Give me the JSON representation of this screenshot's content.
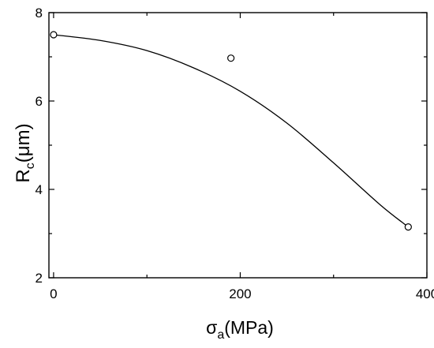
{
  "chart_data": {
    "type": "scatter",
    "xlabel": {
      "main": "σ",
      "sub": "a",
      "rest": "(MPa)"
    },
    "ylabel": {
      "main": "R",
      "sub": "c",
      "rest": "(μm)"
    },
    "xlim": [
      -5,
      400
    ],
    "ylim": [
      2,
      8
    ],
    "x_ticks": [
      0,
      200,
      400
    ],
    "x_minor_ticks": [
      100,
      300
    ],
    "y_ticks": [
      2,
      4,
      6,
      8
    ],
    "y_minor_ticks": [
      3,
      5,
      7
    ],
    "series": [
      {
        "marker": "open-circle",
        "points": [
          {
            "x": 0,
            "y": 7.5
          },
          {
            "x": 190,
            "y": 6.97
          },
          {
            "x": 380,
            "y": 3.15
          }
        ]
      }
    ],
    "fit_curve": {
      "points": [
        {
          "x": 0,
          "y": 7.5
        },
        {
          "x": 50,
          "y": 7.37
        },
        {
          "x": 100,
          "y": 7.14
        },
        {
          "x": 150,
          "y": 6.75
        },
        {
          "x": 200,
          "y": 6.22
        },
        {
          "x": 250,
          "y": 5.5
        },
        {
          "x": 300,
          "y": 4.6
        },
        {
          "x": 350,
          "y": 3.65
        },
        {
          "x": 380,
          "y": 3.15
        }
      ]
    },
    "grid": false,
    "colors": {
      "line": "#000000",
      "marker_fill": "#ffffff"
    }
  }
}
